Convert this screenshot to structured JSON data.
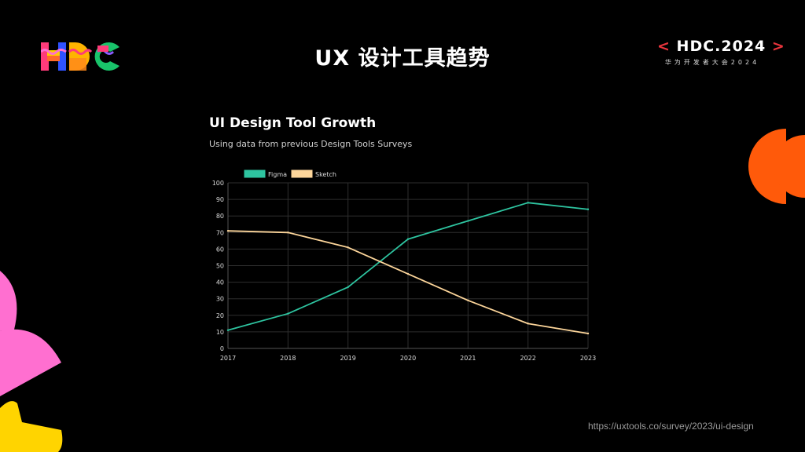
{
  "slide": {
    "title": "UX 设计工具趋势",
    "source": "https://uxtools.co/survey/2023/ui-design"
  },
  "brand": {
    "logo_icon": "hdc-logo-icon",
    "event_prefix": "<",
    "event_name": "HDC.2024",
    "event_suffix": ">",
    "event_subtitle": "华为开发者大会2024",
    "accent_color": "#e8343c"
  },
  "chart_data": {
    "type": "line",
    "title": "UI Design Tool Growth",
    "subtitle": "Using data from previous Design Tools Surveys",
    "xlabel": "",
    "ylabel": "",
    "x": [
      "2017",
      "2018",
      "2019",
      "2020",
      "2021",
      "2022",
      "2023"
    ],
    "ylim": [
      0,
      100
    ],
    "yticks": [
      "0",
      "10",
      "20",
      "30",
      "40",
      "50",
      "60",
      "70",
      "80",
      "90",
      "100"
    ],
    "grid": true,
    "legend_position": "top-left",
    "series": [
      {
        "name": "Figma",
        "color": "#2ec4a0",
        "values": [
          11,
          21,
          37,
          66,
          77,
          88,
          84
        ]
      },
      {
        "name": "Sketch",
        "color": "#fcd59a",
        "values": [
          71,
          70,
          61,
          45,
          29,
          15,
          9
        ]
      }
    ]
  }
}
